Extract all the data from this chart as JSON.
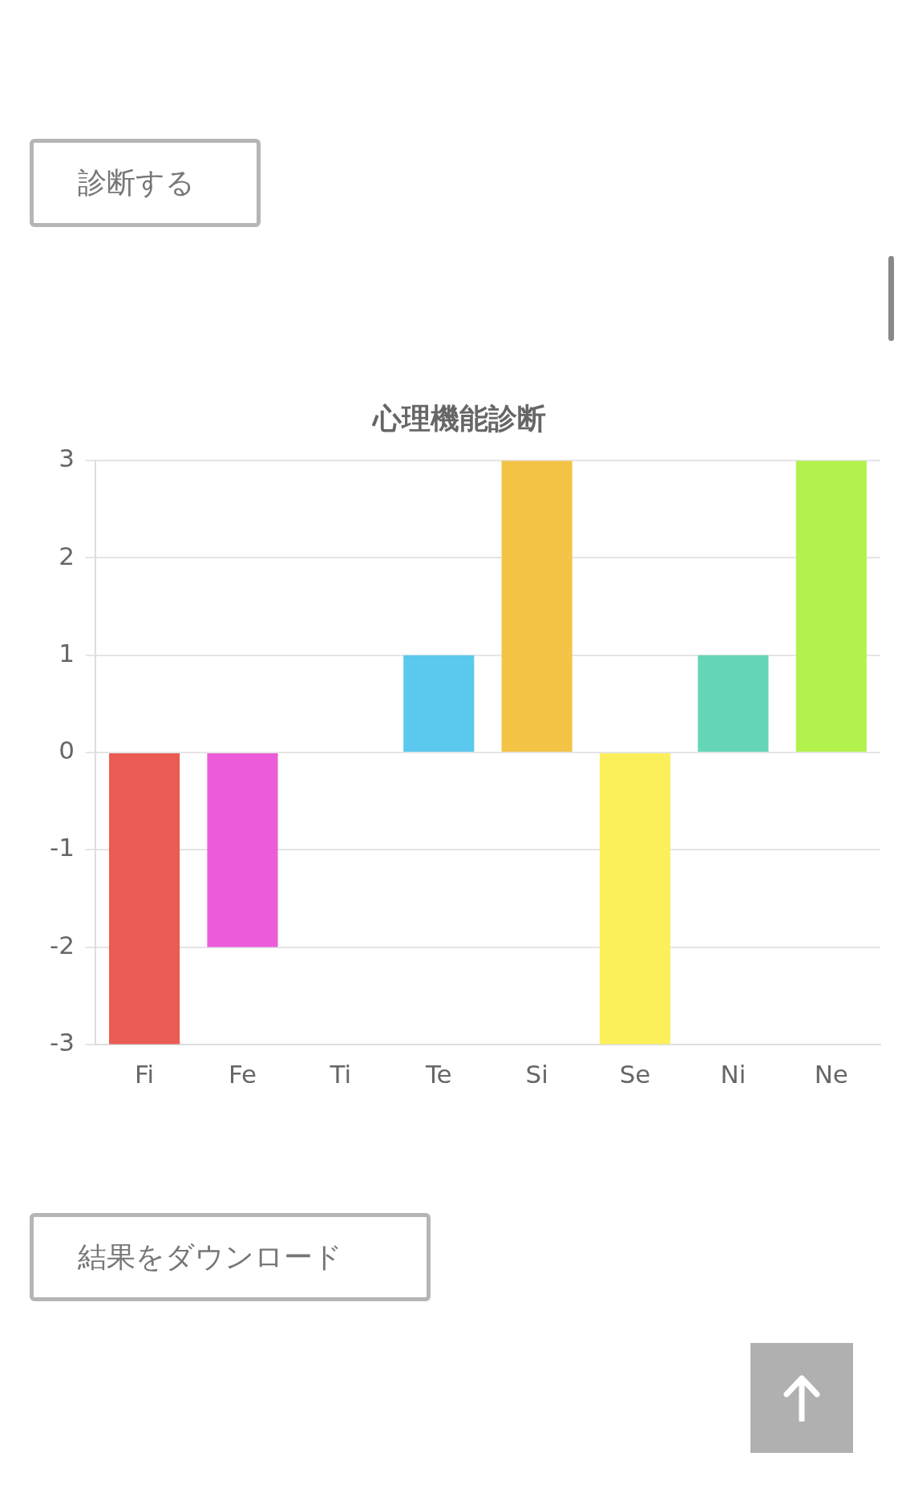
{
  "chart_data": {
    "type": "bar",
    "title": "心理機能診断",
    "categories": [
      "Fi",
      "Fe",
      "Ti",
      "Te",
      "Si",
      "Se",
      "Ni",
      "Ne"
    ],
    "values": [
      -3,
      -2,
      0,
      1,
      3,
      -3,
      1,
      3
    ],
    "colors": [
      "#ea5b53",
      "#ec5cd8",
      "#b0b0b0",
      "#5bc8ed",
      "#f4c447",
      "#fbf05a",
      "#64d6b7",
      "#b3f14d"
    ],
    "ylim": [
      -3,
      3
    ],
    "yticks": [
      -3,
      -2,
      -1,
      0,
      1,
      2,
      3
    ],
    "grid": "y",
    "legend": false,
    "annotations": [
      "診断する",
      "結果をダウンロード"
    ]
  }
}
